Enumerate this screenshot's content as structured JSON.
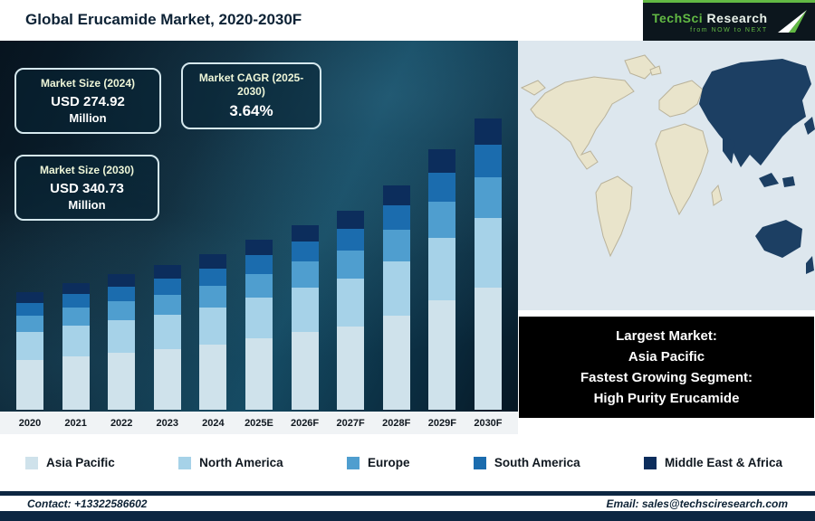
{
  "header": {
    "title": "Global Erucamide Market, 2020-2030F"
  },
  "logo": {
    "name1": "TechSci",
    "name2": "Research",
    "tagline": "from NOW to NEXT"
  },
  "stats": [
    {
      "label": "Market Size (2024)",
      "value": "USD 274.92",
      "unit": "Million"
    },
    {
      "label": "Market CAGR (2025-2030)",
      "value": "3.64%"
    },
    {
      "label": "Market Size (2030)",
      "value": "USD 340.73",
      "unit": "Million"
    }
  ],
  "chart_data": {
    "type": "bar",
    "stacked": true,
    "title": "Global Erucamide Market, 2020-2030F",
    "categories": [
      "2020",
      "2021",
      "2022",
      "2023",
      "2024",
      "2025E",
      "2026F",
      "2027F",
      "2028F",
      "2029F",
      "2030F"
    ],
    "series": [
      {
        "name": "Asia Pacific",
        "color": "#cfe2eb",
        "values": [
          55,
          59,
          63,
          67,
          72,
          79,
          86,
          92,
          104,
          121,
          135
        ]
      },
      {
        "name": "North America",
        "color": "#a6d2e8",
        "values": [
          31,
          34,
          36,
          38,
          41,
          45,
          49,
          53,
          60,
          69,
          77
        ]
      },
      {
        "name": "Europe",
        "color": "#4f9ecf",
        "values": [
          18,
          20,
          21,
          22,
          24,
          26,
          29,
          31,
          35,
          40,
          45
        ]
      },
      {
        "name": "South America",
        "color": "#1b6cae",
        "values": [
          14,
          15,
          16,
          18,
          19,
          21,
          22,
          24,
          27,
          32,
          36
        ]
      },
      {
        "name": "Middle East & Africa",
        "color": "#0c2d5c",
        "values": [
          12,
          12,
          14,
          15,
          16,
          17,
          18,
          20,
          22,
          26,
          29
        ]
      }
    ],
    "value_anchors": {
      "market_size_2024": 274.92,
      "market_size_2030": 340.73,
      "cagr_2025_2030_pct": 3.64
    },
    "legend_position": "bottom",
    "grid": false,
    "note": "segment heights estimated from image, illustrative units"
  },
  "map_note": {
    "lines": [
      "Largest Market:",
      "Asia Pacific",
      "Fastest Growing Segment:",
      "High Purity Erucamide"
    ]
  },
  "footer": {
    "contact": "Contact: +13322586602",
    "email": "Email: sales@techsciresearch.com"
  }
}
